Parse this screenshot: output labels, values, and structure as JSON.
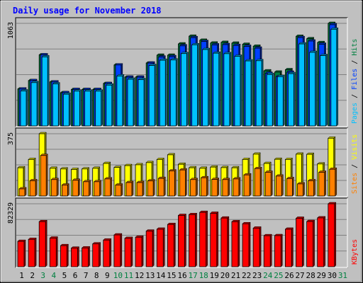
{
  "title": "Daily usage for November 2018",
  "colors": {
    "background": "#c0c0c0",
    "title": "#0000ff",
    "grid": "#808080",
    "hits": "#008040",
    "files": "#0040ff",
    "pages": "#00c0ff",
    "visits": "#ffff00",
    "sites": "#ff8000",
    "kbytes": "#ff0000",
    "weekend_label": "#008040",
    "weekday_label": "#000000"
  },
  "chart_data": [
    {
      "type": "bar",
      "x": [
        1,
        2,
        3,
        4,
        5,
        6,
        7,
        8,
        9,
        10,
        11,
        12,
        13,
        14,
        15,
        16,
        17,
        18,
        19,
        20,
        21,
        22,
        23,
        24,
        25,
        26,
        27,
        28,
        29,
        30,
        31
      ],
      "weekend_days": [
        3,
        4,
        10,
        11,
        17,
        18,
        24,
        25,
        31
      ],
      "ylim": [
        0,
        1063
      ],
      "ymax_label": "1063",
      "legend": [
        {
          "key": "pages",
          "label": "Pages"
        },
        {
          "key": "files",
          "label": "Files"
        },
        {
          "key": "hits",
          "label": "Hits"
        }
      ],
      "series": [
        {
          "key": "hits",
          "values": [
            383,
            470,
            737,
            456,
            345,
            378,
            378,
            378,
            440,
            632,
            506,
            506,
            652,
            733,
            733,
            850,
            930,
            888,
            859,
            866,
            858,
            846,
            826,
            571,
            558,
            583,
            929,
            904,
            864,
            1063,
            0
          ]
        },
        {
          "key": "files",
          "values": [
            383,
            470,
            737,
            456,
            345,
            378,
            378,
            378,
            440,
            632,
            506,
            506,
            652,
            714,
            718,
            830,
            915,
            875,
            840,
            843,
            834,
            825,
            806,
            546,
            512,
            557,
            916,
            880,
            847,
            1049,
            0
          ]
        },
        {
          "key": "pages",
          "values": [
            363,
            449,
            716,
            436,
            329,
            361,
            361,
            361,
            423,
            518,
            484,
            480,
            626,
            681,
            684,
            750,
            841,
            792,
            754,
            749,
            722,
            674,
            676,
            533,
            511,
            542,
            850,
            763,
            729,
            1002,
            0
          ]
        }
      ]
    },
    {
      "type": "bar",
      "x": [
        1,
        2,
        3,
        4,
        5,
        6,
        7,
        8,
        9,
        10,
        11,
        12,
        13,
        14,
        15,
        16,
        17,
        18,
        19,
        20,
        21,
        22,
        23,
        24,
        25,
        26,
        27,
        28,
        29,
        30,
        31
      ],
      "ylim": [
        0,
        375
      ],
      "ymax_label": "375",
      "legend": [
        {
          "key": "sites",
          "label": "Sites"
        },
        {
          "key": "visits",
          "label": "Visits"
        }
      ],
      "series": [
        {
          "key": "visits",
          "values": [
            170,
            220,
            375,
            167,
            163,
            160,
            163,
            167,
            196,
            172,
            183,
            188,
            201,
            220,
            248,
            191,
            170,
            167,
            174,
            171,
            170,
            220,
            252,
            196,
            221,
            220,
            252,
            251,
            193,
            348,
            0
          ]
        },
        {
          "key": "sites",
          "values": [
            43,
            92,
            244,
            99,
            66,
            95,
            86,
            86,
            103,
            66,
            81,
            81,
            91,
            106,
            151,
            157,
            99,
            110,
            100,
            99,
            103,
            127,
            165,
            143,
            120,
            105,
            73,
            92,
            143,
            161,
            0
          ]
        }
      ]
    },
    {
      "type": "bar",
      "x": [
        1,
        2,
        3,
        4,
        5,
        6,
        7,
        8,
        9,
        10,
        11,
        12,
        13,
        14,
        15,
        16,
        17,
        18,
        19,
        20,
        21,
        22,
        23,
        24,
        25,
        26,
        27,
        28,
        29,
        30,
        31
      ],
      "ylim": [
        0,
        82329
      ],
      "ymax_label": "82329",
      "legend": [
        {
          "key": "kbytes",
          "label": "KBytes"
        }
      ],
      "series": [
        {
          "key": "kbytes",
          "values": [
            33200,
            35800,
            59000,
            37500,
            27600,
            24300,
            24600,
            29900,
            34900,
            41600,
            37100,
            38600,
            46600,
            49100,
            55300,
            67100,
            68200,
            71100,
            69900,
            63700,
            58900,
            56200,
            50500,
            40600,
            40700,
            49100,
            63400,
            59200,
            63900,
            82329,
            0
          ]
        }
      ]
    }
  ]
}
